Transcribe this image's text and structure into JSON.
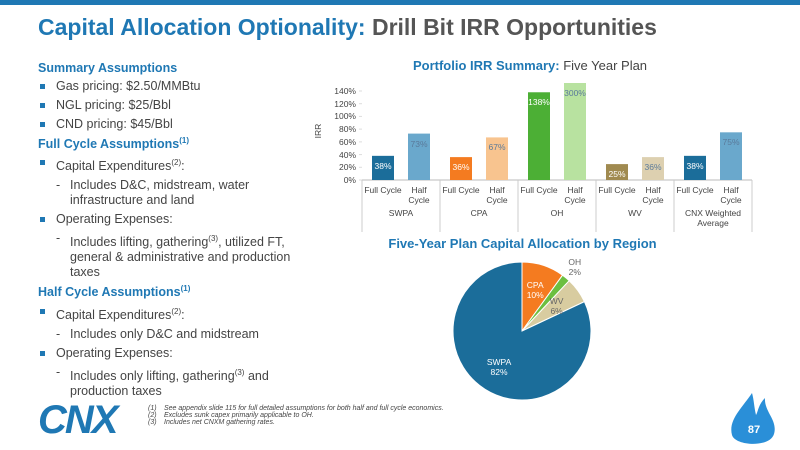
{
  "header": {
    "title_bold": "Capital Allocation Optionality:",
    "title_rest": "Drill Bit IRR Opportunities"
  },
  "left": {
    "sections": [
      {
        "heading": "Summary Assumptions",
        "bullets": [
          {
            "text": "Gas pricing: $2.50/MMBtu"
          },
          {
            "text": "NGL pricing: $25/Bbl"
          },
          {
            "text": "CND pricing: $45/Bbl"
          }
        ]
      },
      {
        "heading": "Full Cycle Assumptions",
        "heading_sup": "(1)",
        "bullets": [
          {
            "text": "Capital Expenditures",
            "sup": "(2)",
            "after": ":",
            "sub": {
              "text": "Includes D&C, midstream, water infrastructure and land"
            }
          },
          {
            "text": "Operating Expenses:",
            "sub": {
              "text": "Includes lifting, gathering",
              "sup": "(3)",
              "after": ", utilized FT, general & administrative and production taxes"
            }
          }
        ]
      },
      {
        "heading": "Half Cycle Assumptions",
        "heading_sup": "(1)",
        "bullets": [
          {
            "text": "Capital Expenditures",
            "sup": "(2)",
            "after": ":",
            "sub": {
              "text": "Includes only D&C and midstream"
            }
          },
          {
            "text": "Operating Expenses:",
            "sub": {
              "text": "Includes only lifting, gathering",
              "sup": "(3)",
              "after": " and production taxes"
            }
          }
        ]
      }
    ]
  },
  "chart_data": [
    {
      "type": "bar",
      "title_bold": "Portfolio IRR Summary:",
      "title": "Five Year Plan",
      "ylabel": "IRR",
      "categories": [
        "SWPA",
        "CPA",
        "OH",
        "WV",
        "CNX Weighted Average"
      ],
      "series": [
        {
          "name": "Full Cycle",
          "colors": [
            "#1b6d9a",
            "#f47b20",
            "#4caf35",
            "#a08a50",
            "#1b6d9a"
          ],
          "values": [
            38,
            36,
            138,
            25,
            38
          ],
          "value_labels": [
            "38%",
            "36%",
            "138%",
            "25%",
            "38%"
          ]
        },
        {
          "name": "Half Cycle",
          "colors": [
            "#6aa8cc",
            "#f8c48f",
            "#b8e2a0",
            "#ddd0b0",
            "#6aa8cc"
          ],
          "values": [
            73,
            67,
            300,
            36,
            75
          ],
          "value_labels": [
            "73%",
            "67%",
            "300%",
            "36%",
            "75%"
          ]
        }
      ],
      "ylim": [
        0,
        140
      ],
      "yticks": [
        {
          "value": 0,
          "label": "0%"
        },
        {
          "value": 20,
          "label": "20%"
        },
        {
          "value": 40,
          "label": "40%"
        },
        {
          "value": 60,
          "label": "60%"
        },
        {
          "value": 80,
          "label": "80%"
        },
        {
          "value": 100,
          "label": "100%"
        },
        {
          "value": 120,
          "label": "120%"
        },
        {
          "value": 140,
          "label": "140%"
        }
      ]
    },
    {
      "type": "pie",
      "title": "Five-Year Plan Capital Allocation by Region",
      "categories": [
        "CPA",
        "OH",
        "WV",
        "SWPA"
      ],
      "values": [
        10,
        2,
        6,
        82
      ],
      "value_labels": [
        "10%",
        "2%",
        "6%",
        "82%"
      ],
      "colors": [
        "#f47b20",
        "#6cbf40",
        "#d8cca0",
        "#1b6d9a"
      ]
    }
  ],
  "footnotes": [
    {
      "num": "(1)",
      "text": "See appendix slide 115 for full detailed assumptions for both half and full cycle economics."
    },
    {
      "num": "(2)",
      "text": "Excludes sunk capex primarily applicable to OH."
    },
    {
      "num": "(3)",
      "text": "Includes net CNXM gathering rates."
    }
  ],
  "logo": "CNX",
  "page_number": "87"
}
